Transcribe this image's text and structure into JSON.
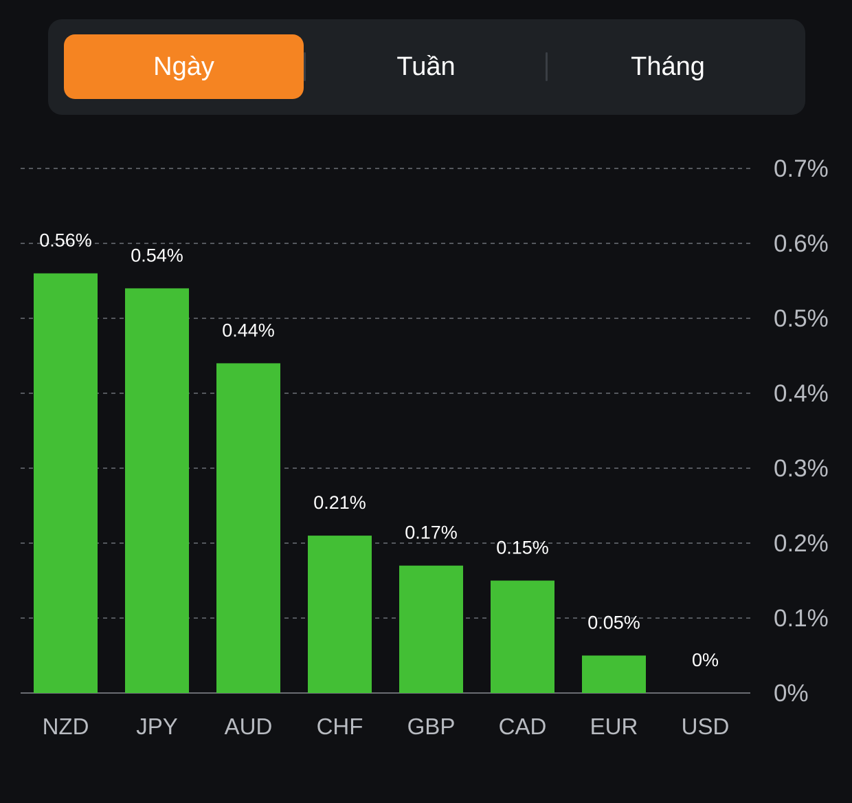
{
  "tabs": [
    {
      "label": "Ngày",
      "active": true
    },
    {
      "label": "Tuần",
      "active": false
    },
    {
      "label": "Tháng",
      "active": false
    }
  ],
  "colors": {
    "background": "#0f1013",
    "panel": "#1e2125",
    "accent": "#f58422",
    "bar": "#43bf35",
    "grid": "#55585e",
    "label": "#b9bcc2"
  },
  "chart_data": {
    "type": "bar",
    "categories": [
      "NZD",
      "JPY",
      "AUD",
      "CHF",
      "GBP",
      "CAD",
      "EUR",
      "USD"
    ],
    "values": [
      0.56,
      0.54,
      0.44,
      0.21,
      0.17,
      0.15,
      0.05,
      0
    ],
    "data_labels": [
      "0.56%",
      "0.54%",
      "0.44%",
      "0.21%",
      "0.17%",
      "0.15%",
      "0.05%",
      "0%"
    ],
    "yticks": [
      0,
      0.1,
      0.2,
      0.3,
      0.4,
      0.5,
      0.6,
      0.7
    ],
    "ytick_labels": [
      "0%",
      "0.1%",
      "0.2%",
      "0.3%",
      "0.4%",
      "0.5%",
      "0.6%",
      "0.7%"
    ],
    "ylim": [
      0,
      0.7
    ],
    "y_axis_side": "right",
    "grid": "dashed horizontal",
    "title": "",
    "xlabel": "",
    "ylabel": ""
  }
}
